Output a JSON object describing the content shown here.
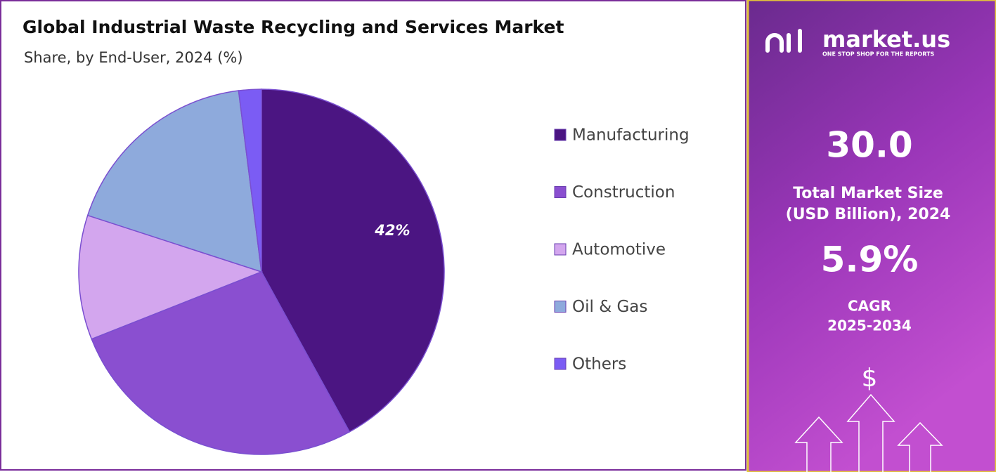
{
  "chart_data": {
    "type": "pie",
    "title": "Global Industrial Waste Recycling and Services Market",
    "subtitle": "Share, by End-User, 2024 (%)",
    "categories": [
      "Manufacturing",
      "Construction",
      "Automotive",
      "Oil & Gas",
      "Others"
    ],
    "values": [
      42,
      27,
      11,
      18,
      2
    ],
    "value_labels": [
      "42%",
      null,
      null,
      null,
      null
    ],
    "colors": [
      "#4b1582",
      "#8a4fd0",
      "#d3a6ee",
      "#8eaadc",
      "#7b5cf4"
    ],
    "legend": "right"
  },
  "panel": {
    "brand": "market.us",
    "tagline": "ONE STOP SHOP FOR THE REPORTS",
    "market_size": "30.0",
    "market_size_label": [
      "Total Market Size",
      "(USD Billion), 2024"
    ],
    "cagr": "5.9%",
    "cagr_label": [
      "CAGR",
      "2025-2034"
    ],
    "icon_symbol": "$"
  }
}
